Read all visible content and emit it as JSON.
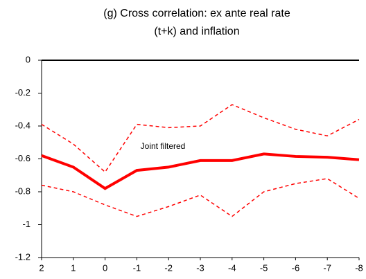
{
  "chart_data": {
    "type": "line",
    "title": [
      "(g) Cross correlation: ex ante real rate",
      "(t+k) and inflation"
    ],
    "categories": [
      "2",
      "1",
      "0",
      "-1",
      "-2",
      "-3",
      "-4",
      "-5",
      "-6",
      "-7",
      "-8"
    ],
    "series": [
      {
        "name": "Joint filtered",
        "color": "#ff0000",
        "style": "solid",
        "values": [
          -0.58,
          -0.65,
          -0.78,
          -0.67,
          -0.65,
          -0.61,
          -0.61,
          -0.57,
          -0.585,
          -0.59,
          -0.605
        ]
      },
      {
        "color": "#ff0000",
        "style": "dashed",
        "values": [
          -0.39,
          -0.51,
          -0.68,
          -0.39,
          -0.41,
          -0.4,
          -0.27,
          -0.35,
          -0.42,
          -0.46,
          -0.36
        ]
      },
      {
        "color": "#ff0000",
        "style": "dashed",
        "values": [
          -0.76,
          -0.8,
          -0.88,
          -0.95,
          -0.89,
          -0.82,
          -0.95,
          -0.8,
          -0.75,
          -0.72,
          -0.84
        ]
      }
    ],
    "ylim": [
      -1.2,
      0
    ],
    "yticks": [
      0,
      -0.2,
      -0.4,
      -0.6,
      -0.8,
      -1,
      -1.2
    ]
  }
}
